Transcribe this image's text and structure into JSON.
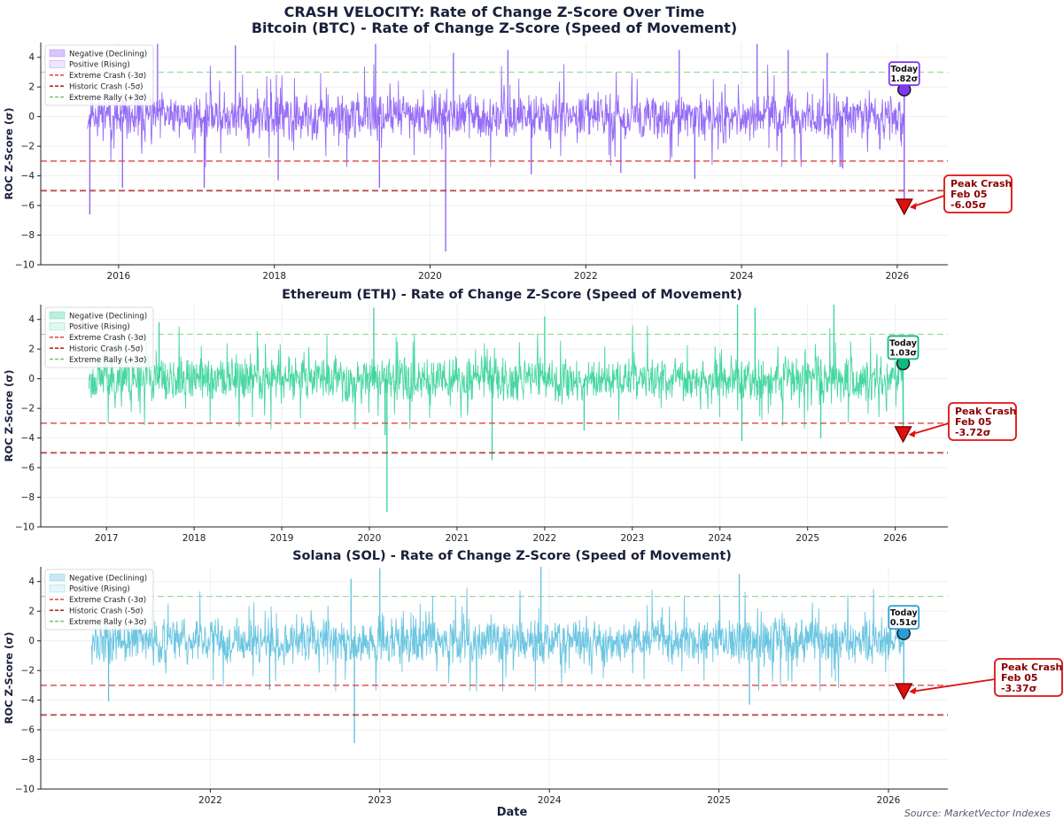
{
  "figure": {
    "title": "CRASH VELOCITY: Rate of Change Z-Score Over Time",
    "source": "Source: MarketVector Indexes",
    "xlabel": "Date"
  },
  "chart_data": [
    {
      "type": "line",
      "title": "Bitcoin (BTC) - Rate of Change Z-Score (Speed of Movement)",
      "xlabel": "",
      "ylabel": "ROC Z-Score (σ)",
      "color": "#8b5cf6",
      "marker_color": "#7c3aed",
      "x_range": [
        2015.0,
        2026.65
      ],
      "ylim": [
        -10,
        5
      ],
      "yticks": [
        4,
        2,
        0,
        -2,
        -4,
        -6,
        -8,
        -10
      ],
      "xticks": [
        2016,
        2018,
        2020,
        2022,
        2024,
        2026
      ],
      "xtick_labels": [
        "2016",
        "2018",
        "2020",
        "2022",
        "2024",
        "2026"
      ],
      "data_start": 2015.6,
      "data_end": 2026.09,
      "noise_seed": 11,
      "spikes": [
        [
          2015.63,
          -6.6
        ],
        [
          2016.05,
          -4.8
        ],
        [
          2017.1,
          -4.8
        ],
        [
          2018.05,
          -4.3
        ],
        [
          2019.35,
          -4.8
        ],
        [
          2020.2,
          -9.1
        ],
        [
          2021.3,
          -3.9
        ],
        [
          2022.45,
          -3.8
        ],
        [
          2023.4,
          -4.2
        ],
        [
          2025.3,
          -3.5
        ],
        [
          2016.5,
          4.9
        ],
        [
          2017.5,
          4.8
        ],
        [
          2019.3,
          4.9
        ],
        [
          2020.3,
          4.3
        ],
        [
          2021.0,
          4.5
        ],
        [
          2023.2,
          4.5
        ],
        [
          2024.2,
          4.9
        ],
        [
          2024.6,
          4.5
        ],
        [
          2025.1,
          4.3
        ]
      ],
      "today": {
        "label": "Today",
        "value_label": "1.82σ",
        "x": 2026.09,
        "y": 1.82
      },
      "peak": {
        "label": "Peak Crash",
        "date": "Feb 05",
        "value_label": "-6.05σ",
        "x": 2026.09,
        "y": -6.05
      },
      "legend": {
        "position": "upper-left",
        "entries": [
          "Negative (Declining)",
          "Positive (Rising)",
          "Extreme Crash (-3σ)",
          "Historic Crash (-5σ)",
          "Extreme Rally (+3σ)"
        ]
      },
      "reference_lines": [
        {
          "name": "Extreme Rally (+3σ)",
          "y": 3,
          "color": "#7ac77a"
        },
        {
          "name": "Extreme Crash (-3σ)",
          "y": -3,
          "color": "#e05252"
        },
        {
          "name": "Historic Crash (-5σ)",
          "y": -5,
          "color": "#b03030"
        }
      ]
    },
    {
      "type": "line",
      "title": "Ethereum (ETH) - Rate of Change Z-Score (Speed of Movement)",
      "xlabel": "",
      "ylabel": "ROC Z-Score (σ)",
      "color": "#34d399",
      "marker_color": "#10b981",
      "x_range": [
        2016.25,
        2026.6
      ],
      "ylim": [
        -10,
        5
      ],
      "yticks": [
        4,
        2,
        0,
        -2,
        -4,
        -6,
        -8,
        -10
      ],
      "xticks": [
        2017,
        2018,
        2019,
        2020,
        2021,
        2022,
        2023,
        2024,
        2025,
        2026
      ],
      "xtick_labels": [
        "2017",
        "2018",
        "2019",
        "2020",
        "2021",
        "2022",
        "2023",
        "2024",
        "2025",
        "2026"
      ],
      "data_start": 2016.8,
      "data_end": 2026.09,
      "noise_seed": 23,
      "spikes": [
        [
          2020.2,
          -9.0
        ],
        [
          2021.4,
          -5.5
        ],
        [
          2020.18,
          -3.8
        ],
        [
          2022.45,
          -3.5
        ],
        [
          2024.25,
          -4.2
        ],
        [
          2025.15,
          -4.0
        ],
        [
          2017.6,
          3.8
        ],
        [
          2020.05,
          4.8
        ],
        [
          2022.0,
          4.2
        ],
        [
          2024.2,
          5.0
        ],
        [
          2024.4,
          4.8
        ],
        [
          2025.3,
          5.0
        ]
      ],
      "today": {
        "label": "Today",
        "value_label": "1.03σ",
        "x": 2026.09,
        "y": 1.03
      },
      "peak": {
        "label": "Peak Crash",
        "date": "Feb 05",
        "value_label": "-3.72σ",
        "x": 2026.09,
        "y": -3.72
      },
      "legend": {
        "position": "upper-left",
        "entries": [
          "Negative (Declining)",
          "Positive (Rising)",
          "Extreme Crash (-3σ)",
          "Historic Crash (-5σ)",
          "Extreme Rally (+3σ)"
        ]
      },
      "reference_lines": [
        {
          "name": "Extreme Rally (+3σ)",
          "y": 3,
          "color": "#7ac77a"
        },
        {
          "name": "Extreme Crash (-3σ)",
          "y": -3,
          "color": "#e05252"
        },
        {
          "name": "Historic Crash (-5σ)",
          "y": -5,
          "color": "#b03030"
        }
      ]
    },
    {
      "type": "line",
      "title": "Solana (SOL) - Rate of Change Z-Score (Speed of Movement)",
      "xlabel": "Date",
      "ylabel": "ROC Z-Score (σ)",
      "color": "#5bc0de",
      "marker_color": "#2a9fd6",
      "x_range": [
        2021.0,
        2026.35
      ],
      "ylim": [
        -10,
        5
      ],
      "yticks": [
        4,
        2,
        0,
        -2,
        -4,
        -6,
        -8,
        -10
      ],
      "xticks": [
        2022,
        2023,
        2024,
        2025,
        2026
      ],
      "xtick_labels": [
        "2022",
        "2023",
        "2024",
        "2025",
        "2026"
      ],
      "data_start": 2021.3,
      "data_end": 2026.09,
      "noise_seed": 37,
      "spikes": [
        [
          2022.85,
          -6.9
        ],
        [
          2021.4,
          -4.1
        ],
        [
          2025.18,
          -4.3
        ],
        [
          2022.35,
          -3.3
        ],
        [
          2022.83,
          4.2
        ],
        [
          2023.0,
          4.9
        ],
        [
          2023.95,
          5.0
        ],
        [
          2025.12,
          4.5
        ]
      ],
      "today": {
        "label": "Today",
        "value_label": "0.51σ",
        "x": 2026.09,
        "y": 0.51
      },
      "peak": {
        "label": "Peak Crash",
        "date": "Feb 05",
        "value_label": "-3.37σ",
        "x": 2026.09,
        "y": -3.37
      },
      "legend": {
        "position": "upper-left",
        "entries": [
          "Negative (Declining)",
          "Positive (Rising)",
          "Extreme Crash (-3σ)",
          "Historic Crash (-5σ)",
          "Extreme Rally (+3σ)"
        ]
      },
      "reference_lines": [
        {
          "name": "Extreme Rally (+3σ)",
          "y": 3,
          "color": "#7ac77a"
        },
        {
          "name": "Extreme Crash (-3σ)",
          "y": -3,
          "color": "#e05252"
        },
        {
          "name": "Historic Crash (-5σ)",
          "y": -5,
          "color": "#b03030"
        }
      ]
    }
  ]
}
